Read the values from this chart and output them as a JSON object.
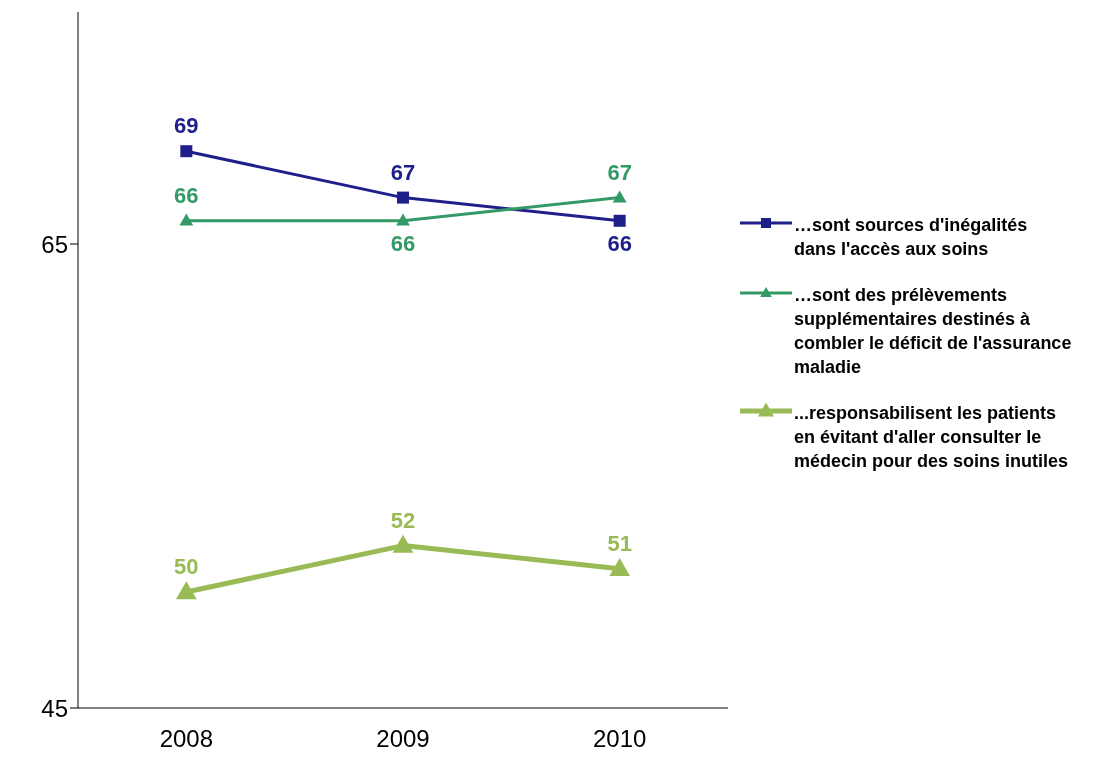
{
  "chart_data": {
    "type": "line",
    "categories": [
      "2008",
      "2009",
      "2010"
    ],
    "series": [
      {
        "name": "…sont sources d'inégalités dans l'accès aux soins",
        "color": "#1f1f8c",
        "marker": "square",
        "values": [
          69,
          67,
          66
        ]
      },
      {
        "name": "…sont des prélèvements supplémentaires destinés à combler le déficit de l'assurance maladie",
        "color": "#339966",
        "marker": "triangle",
        "values": [
          66,
          66,
          67
        ]
      },
      {
        "name": "...responsabilisent les patients en évitant d'aller consulter le médecin pour des soins inutiles",
        "color": "#99bb55",
        "marker": "triangle",
        "values": [
          50,
          52,
          51
        ]
      }
    ],
    "ylim": [
      45,
      75
    ],
    "yticks": [
      45,
      65
    ],
    "grid": false,
    "legend": "right",
    "data_labels": true
  }
}
